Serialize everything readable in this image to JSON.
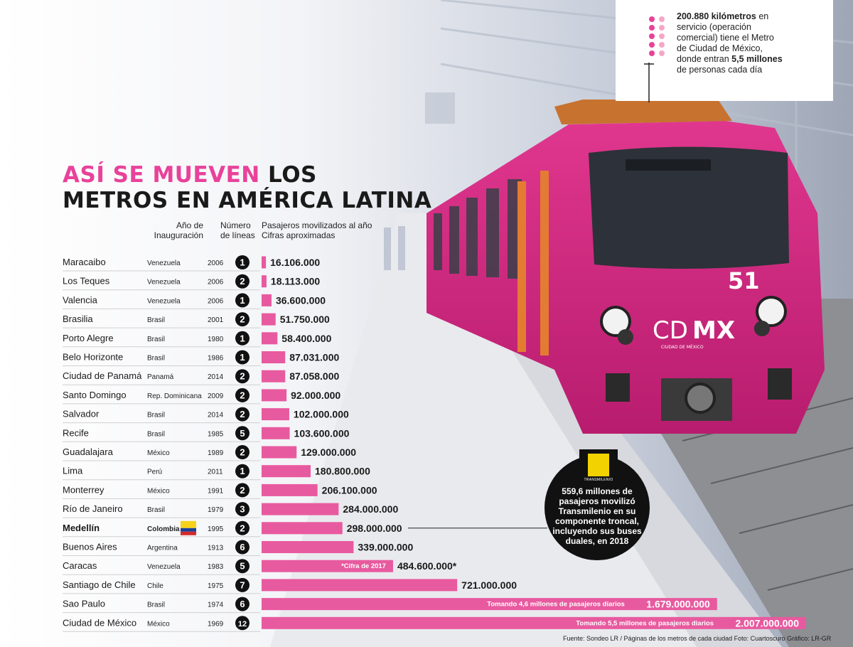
{
  "title": {
    "highlight": "ASÍ SE MUEVEN",
    "rest_line1": "LOS",
    "line2": "METROS EN AMÉRICA LATINA"
  },
  "headers": {
    "year": "Año de\nInauguración",
    "lines": "Número\nde líneas",
    "passengers": "Pasajeros movilizados al año\nCifras aproximadas"
  },
  "info_box": {
    "km": "200.880 kilómetros",
    "text1": " en servicio (operación comercial) tiene el Metro de Ciudad de México, donde entran ",
    "people": "5,5 millones",
    "text2": " de personas cada día"
  },
  "transmilenio": {
    "logo_label": "TRANSMILENIO",
    "text": "559,6 millones de pasajeros movilizó Transmilenio en su componente troncal, incluyendo sus buses duales, en 2018"
  },
  "train_labels": {
    "brand_cd": "CD",
    "brand_mx": "MX",
    "brand_sub": "CIUDAD DE MÉXICO",
    "number": "51"
  },
  "source": "Fuente: Sondeo LR / Páginas de los metros de cada ciudad    Foto: Cuartoscuro    Gráfico: LR-GR",
  "colors": {
    "accent": "#e8429a",
    "bar": "#e85a9f",
    "train": "#d4257f"
  },
  "chart_data": {
    "type": "bar",
    "orientation": "horizontal",
    "categories": [
      "Maracaibo",
      "Los Teques",
      "Valencia",
      "Brasilia",
      "Porto Alegre",
      "Belo Horizonte",
      "Ciudad de Panamá",
      "Santo Domingo",
      "Salvador",
      "Recife",
      "Guadalajara",
      "Lima",
      "Monterrey",
      "Río de Janeiro",
      "Medellín",
      "Buenos Aires",
      "Caracas",
      "Santiago de Chile",
      "Sao Paulo",
      "Ciudad de México"
    ],
    "countries": [
      "Venezuela",
      "Venezuela",
      "Venezuela",
      "Brasil",
      "Brasil",
      "Brasil",
      "Panamá",
      "Rep. Dominicana",
      "Brasil",
      "Brasil",
      "México",
      "Perú",
      "México",
      "Brasil",
      "Colombia",
      "Argentina",
      "Venezuela",
      "Chile",
      "Brasil",
      "México"
    ],
    "years": [
      "2006",
      "2006",
      "2006",
      "2001",
      "1980",
      "1986",
      "2014",
      "2009",
      "2014",
      "1985",
      "1989",
      "2011",
      "1991",
      "1979",
      "1995",
      "1913",
      "1983",
      "1975",
      "1974",
      "1969"
    ],
    "lines": [
      "1",
      "2",
      "1",
      "2",
      "1",
      "1",
      "2",
      "2",
      "2",
      "5",
      "2",
      "1",
      "2",
      "3",
      "2",
      "6",
      "5",
      "7",
      "6",
      "12"
    ],
    "values": [
      16106000,
      18113000,
      36600000,
      51750000,
      58400000,
      87031000,
      87058000,
      92000000,
      102000000,
      103600000,
      129000000,
      180800000,
      206100000,
      284000000,
      298000000,
      339000000,
      484600000,
      721000000,
      1679000000,
      2007000000
    ],
    "value_labels": [
      "16.106.000",
      "18.113.000",
      "36.600.000",
      "51.750.000",
      "58.400.000",
      "87.031.000",
      "87.058.000",
      "92.000.000",
      "102.000.000",
      "103.600.000",
      "129.000.000",
      "180.800.000",
      "206.100.000",
      "284.000.000",
      "298.000.000",
      "339.000.000",
      "484.600.000*",
      "721.000.000",
      "1.679.000.000",
      "2.007.000.000"
    ],
    "notes": [
      "",
      "",
      "",
      "",
      "",
      "",
      "",
      "",
      "",
      "",
      "",
      "",
      "",
      "",
      "",
      "",
      "*Cifra de 2017",
      "",
      "Tomando 4,6 millones de pasajeros diarios",
      "Tomando 5,5 millones de pasajeros diarios"
    ],
    "highlight_category": "Medellín"
  }
}
